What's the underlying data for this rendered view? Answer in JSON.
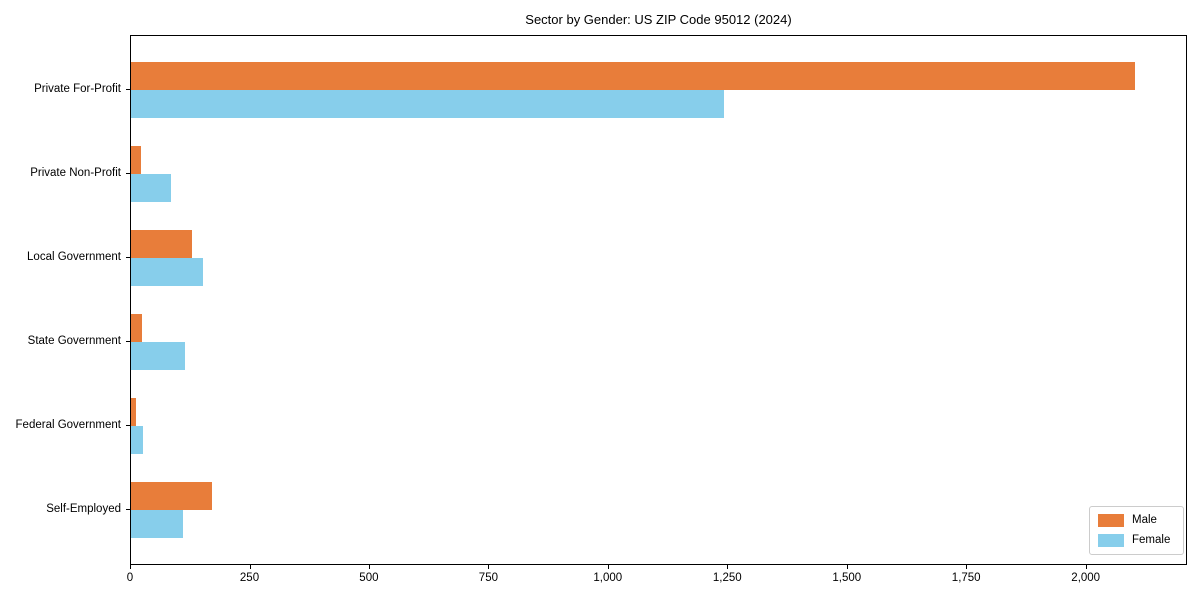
{
  "title": "Sector by Gender: US ZIP Code 95012 (2024)",
  "chart_data": {
    "type": "bar",
    "orientation": "horizontal",
    "title": "Sector by Gender: US ZIP Code 95012 (2024)",
    "xlabel": "",
    "ylabel": "",
    "categories": [
      "Private For-Profit",
      "Private Non-Profit",
      "Local Government",
      "State Government",
      "Federal Government",
      "Self-Employed"
    ],
    "series": [
      {
        "name": "Male",
        "color": "#e87d3a",
        "values": [
          2100,
          20,
          127,
          23,
          10,
          170
        ]
      },
      {
        "name": "Female",
        "color": "#87ceeb",
        "values": [
          1240,
          83,
          151,
          113,
          25,
          108
        ]
      }
    ],
    "xlim": [
      0,
      2212
    ],
    "x_ticks": [
      0,
      250,
      500,
      750,
      1000,
      1250,
      1500,
      1750,
      2000
    ],
    "x_tick_labels": [
      "0",
      "250",
      "500",
      "750",
      "1,000",
      "1,250",
      "1,500",
      "1,750",
      "2,000"
    ],
    "grid": false,
    "legend_position": "lower right",
    "legend_title": ""
  }
}
